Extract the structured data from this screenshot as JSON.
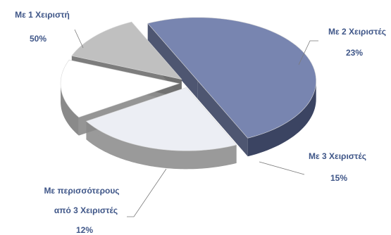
{
  "chart_data": {
    "type": "pie",
    "style": "3d-exploded",
    "legend": "none",
    "slices": [
      {
        "label": "Με 1 Χειριστή",
        "value": 50,
        "display": "50%",
        "top": "#7885b0",
        "side": "#3b4462"
      },
      {
        "label": "Με 2 Χειριστές",
        "value": 23,
        "display": "23%",
        "top": "#eceef4",
        "side": "#9a9a9a"
      },
      {
        "label": "Με 3 Χειριστές",
        "value": 15,
        "display": "15%",
        "top": "#ffffff",
        "side": "#8a8a8a"
      },
      {
        "label_lines": [
          "Με περισσότερους",
          "από 3 Χειριστές"
        ],
        "value": 12,
        "display": "12%",
        "top": "#c0c0c0",
        "side": "#6f6f6f"
      }
    ]
  }
}
